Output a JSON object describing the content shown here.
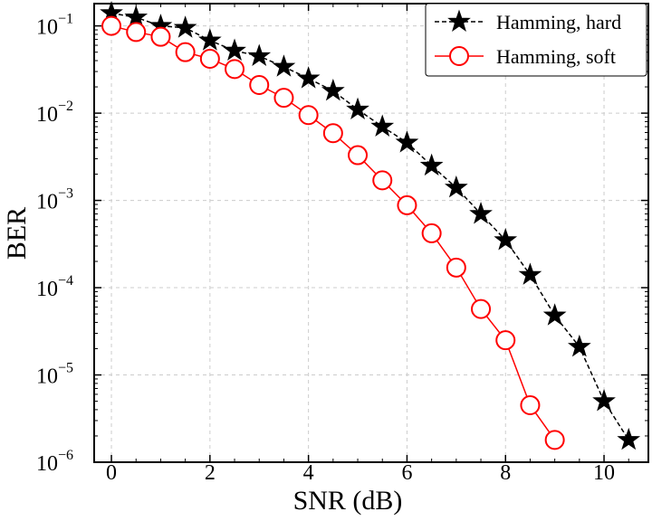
{
  "chart_data": {
    "type": "line",
    "title": "",
    "xlabel": "SNR (dB)",
    "ylabel": "BER",
    "xlim": [
      -0.35,
      10.9
    ],
    "ylim": [
      1e-06,
      0.18
    ],
    "yscale": "log",
    "grid": true,
    "legend_position": "top-right",
    "x_ticks": [
      0,
      2,
      4,
      6,
      8,
      10
    ],
    "x_tick_labels": [
      "0",
      "2",
      "4",
      "6",
      "8",
      "10"
    ],
    "y_ticks": [
      {
        "value": 0.1,
        "base": "10",
        "exp": "−1"
      },
      {
        "value": 0.01,
        "base": "10",
        "exp": "−2"
      },
      {
        "value": 0.001,
        "base": "10",
        "exp": "−3"
      },
      {
        "value": 0.0001,
        "base": "10",
        "exp": "−4"
      },
      {
        "value": 1e-05,
        "base": "10",
        "exp": "−5"
      },
      {
        "value": 1e-06,
        "base": "10",
        "exp": "−6"
      }
    ],
    "series": [
      {
        "name": "Hamming, hard",
        "color": "#000000",
        "line_style": "dashed",
        "marker": "star",
        "x": [
          0,
          0.5,
          1,
          1.5,
          2,
          2.5,
          3,
          3.5,
          4,
          4.5,
          5,
          5.5,
          6,
          6.5,
          7,
          7.5,
          8,
          8.5,
          9,
          9.5,
          10,
          10.5
        ],
        "y": [
          0.14,
          0.125,
          0.1,
          0.095,
          0.068,
          0.052,
          0.045,
          0.034,
          0.025,
          0.018,
          0.011,
          0.007,
          0.0046,
          0.0025,
          0.0014,
          0.0007,
          0.00035,
          0.00014,
          4.8e-05,
          2.1e-05,
          5e-06,
          1.8e-06
        ]
      },
      {
        "name": "Hamming, soft",
        "color": "#ff0000",
        "line_style": "solid",
        "marker": "circle",
        "x": [
          0,
          0.5,
          1,
          1.5,
          2,
          2.5,
          3,
          3.5,
          4,
          4.5,
          5,
          5.5,
          6,
          6.5,
          7,
          7.5,
          8,
          8.5,
          9
        ],
        "y": [
          0.1,
          0.085,
          0.075,
          0.05,
          0.042,
          0.032,
          0.021,
          0.015,
          0.0095,
          0.0059,
          0.0033,
          0.0017,
          0.00088,
          0.00042,
          0.00017,
          5.7e-05,
          2.5e-05,
          4.5e-06,
          1.8e-06
        ]
      }
    ]
  }
}
